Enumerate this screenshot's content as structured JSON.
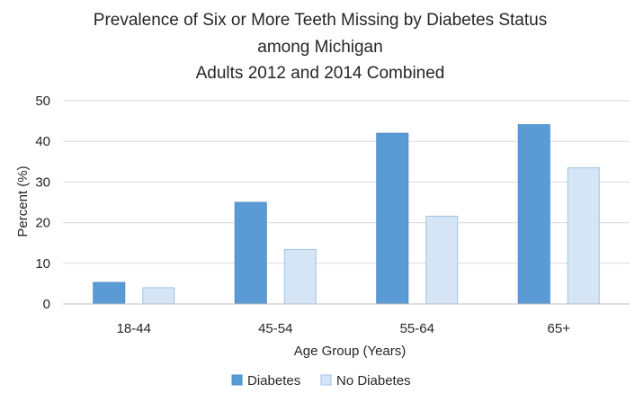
{
  "chart_data": {
    "type": "bar",
    "title_lines": [
      "Prevalence of Six or More Teeth Missing by Diabetes Status",
      "among Michigan",
      "Adults 2012 and 2014 Combined"
    ],
    "xlabel": "Age Group (Years)",
    "ylabel": "Percent (%)",
    "ylim": [
      0,
      50
    ],
    "yticks": [
      0,
      10,
      20,
      30,
      40,
      50
    ],
    "grid": true,
    "legend_position": "bottom",
    "categories": [
      "18-44",
      "45-54",
      "55-64",
      "65+"
    ],
    "series": [
      {
        "name": "Diabetes",
        "color": "#5b9bd5",
        "border": "#4f8cc9",
        "values": [
          5.3,
          25.0,
          42.0,
          44.1
        ]
      },
      {
        "name": "No Diabetes",
        "color": "#d6e5f5",
        "border": "#9dc3e6",
        "values": [
          4.0,
          13.4,
          21.6,
          33.5
        ]
      }
    ]
  }
}
